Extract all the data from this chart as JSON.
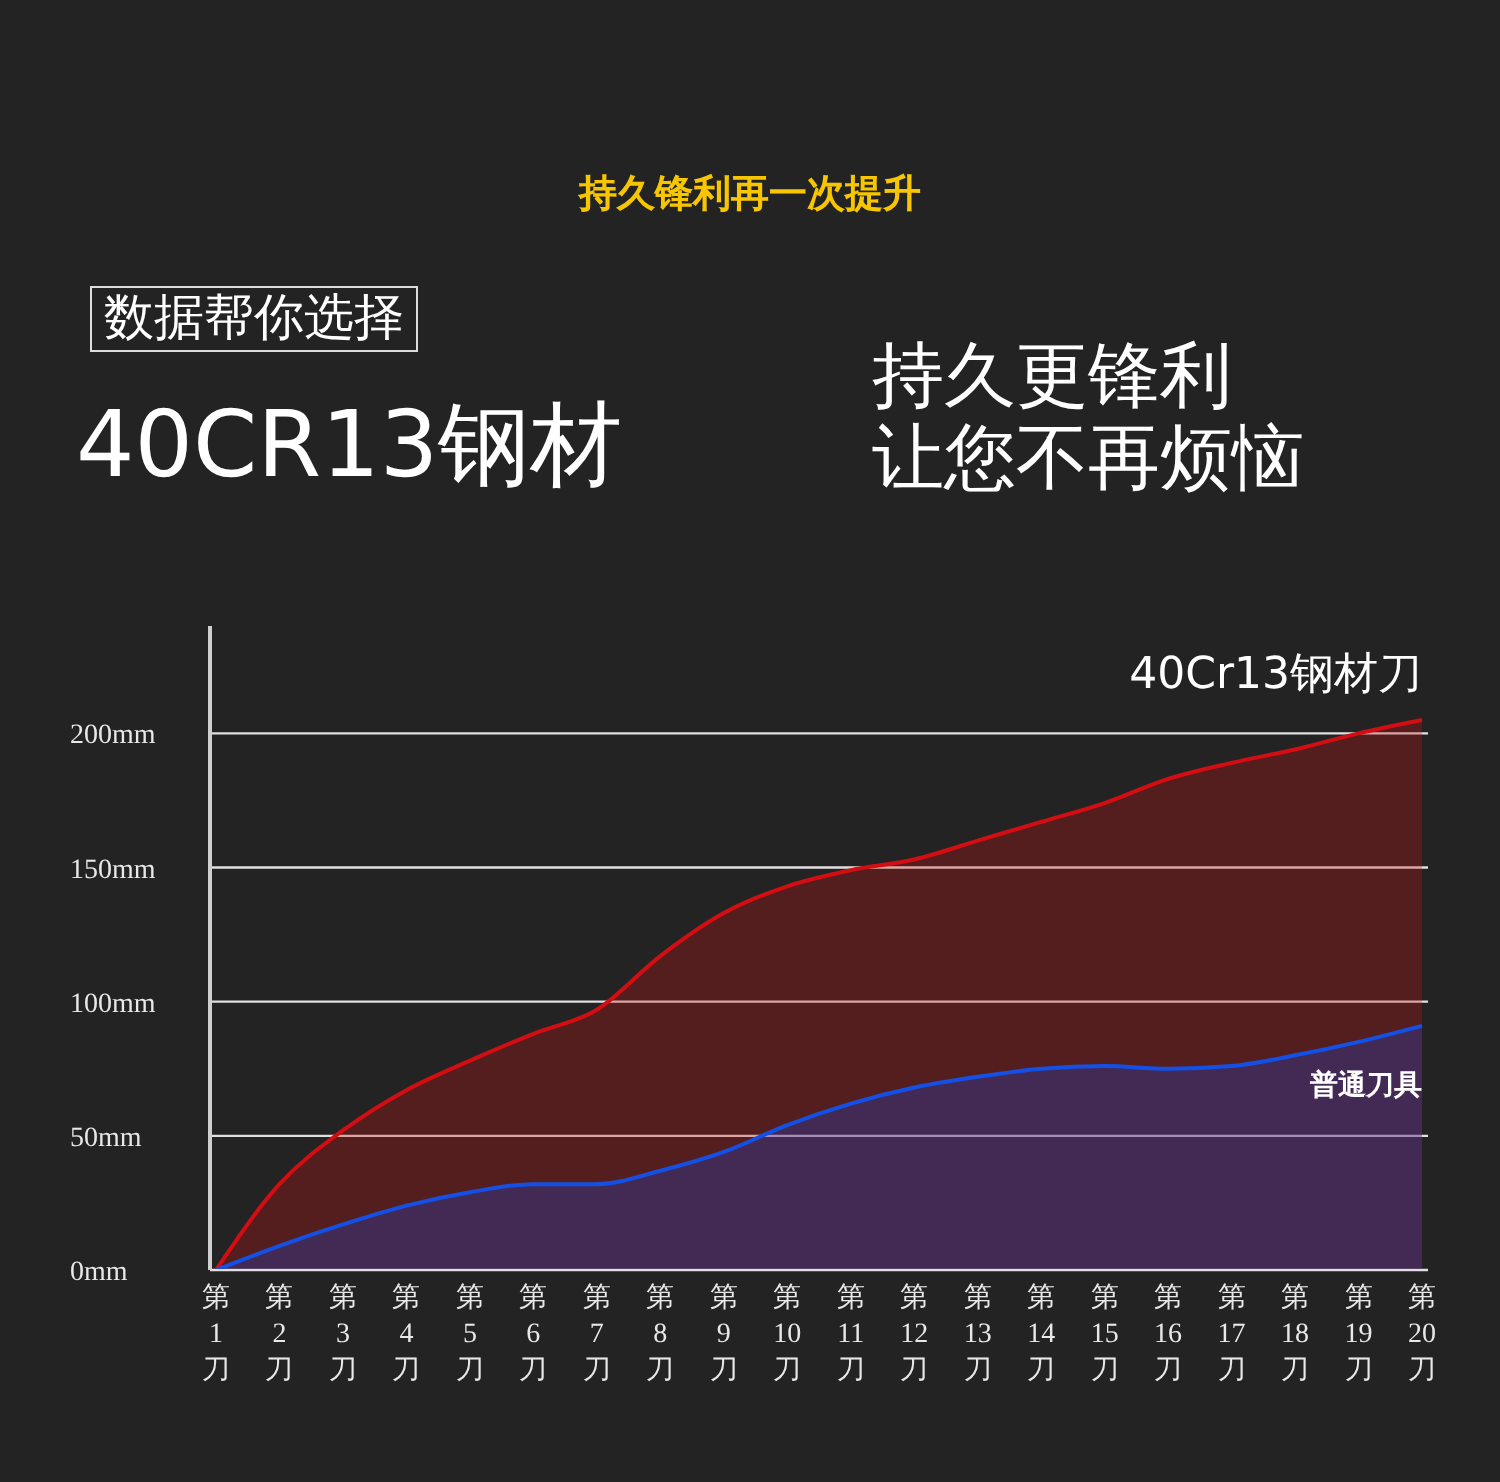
{
  "chart_data": {
    "type": "area",
    "title": "持久锋利再一次提升",
    "annotations": [
      "数据帮你选择",
      "40CR13钢材",
      "持久更锋利",
      "让您不再烦恼"
    ],
    "categories": [
      "第1刀",
      "第2刀",
      "第3刀",
      "第4刀",
      "第5刀",
      "第6刀",
      "第7刀",
      "第8刀",
      "第9刀",
      "第10刀",
      "第11刀",
      "第12刀",
      "第13刀",
      "第14刀",
      "第15刀",
      "第16刀",
      "第17刀",
      "第18刀",
      "第19刀",
      "第20刀"
    ],
    "series": [
      {
        "name": "40Cr13钢材刀",
        "color": "#d40d12",
        "values": [
          0,
          32,
          52,
          67,
          78,
          88,
          97,
          117,
          133,
          143,
          149,
          153,
          160,
          167,
          174,
          183,
          189,
          194,
          200,
          205
        ]
      },
      {
        "name": "普通刀具",
        "color": "#1450e6",
        "values": [
          0,
          9,
          17,
          24,
          29,
          32,
          32,
          37,
          44,
          54,
          62,
          68,
          72,
          75,
          76,
          75,
          76,
          80,
          85,
          91
        ]
      }
    ],
    "ylim": [
      0,
      240
    ],
    "yticks": [
      {
        "value": 0,
        "label": "0mm"
      },
      {
        "value": 50,
        "label": "50mm"
      },
      {
        "value": 100,
        "label": "100mm"
      },
      {
        "value": 150,
        "label": "150mm"
      },
      {
        "value": 200,
        "label": "200mm"
      }
    ],
    "grid": "y"
  }
}
